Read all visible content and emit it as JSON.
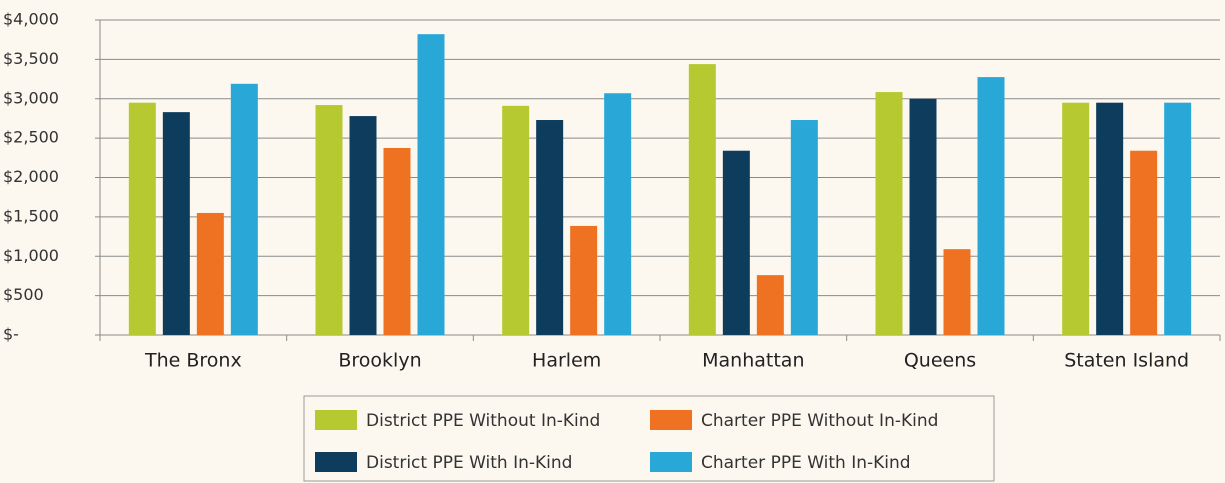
{
  "chart_data": {
    "type": "bar",
    "categories": [
      "The Bronx",
      "Brooklyn",
      "Harlem",
      "Manhattan",
      "Queens",
      "Staten Island"
    ],
    "series": [
      {
        "name": "District PPE Without In-Kind",
        "color": "#b6c931",
        "values": [
          2950,
          2920,
          2910,
          3440,
          3085,
          2950
        ]
      },
      {
        "name": "District PPE With In-Kind",
        "color": "#0e3c5c",
        "values": [
          2830,
          2780,
          2730,
          2340,
          3000,
          2950
        ]
      },
      {
        "name": "Charter PPE Without In-Kind",
        "color": "#ef7222",
        "values": [
          1550,
          2375,
          1385,
          760,
          1090,
          2340
        ]
      },
      {
        "name": "Charter PPE With In-Kind",
        "color": "#29a8d7",
        "values": [
          3190,
          3820,
          3070,
          2730,
          3275,
          2950
        ]
      }
    ],
    "ylim": [
      0,
      4000
    ],
    "yticks": [
      {
        "value": 0,
        "label": "$-"
      },
      {
        "value": 500,
        "label": "$500"
      },
      {
        "value": 1000,
        "label": "$1,000"
      },
      {
        "value": 1500,
        "label": "$1,500"
      },
      {
        "value": 2000,
        "label": "$2,000"
      },
      {
        "value": 2500,
        "label": "$2,500"
      },
      {
        "value": 3000,
        "label": "$3,000"
      },
      {
        "value": 3500,
        "label": "$3,500"
      },
      {
        "value": 4000,
        "label": "$4,000"
      }
    ],
    "grid": true,
    "legend": "bottom"
  }
}
